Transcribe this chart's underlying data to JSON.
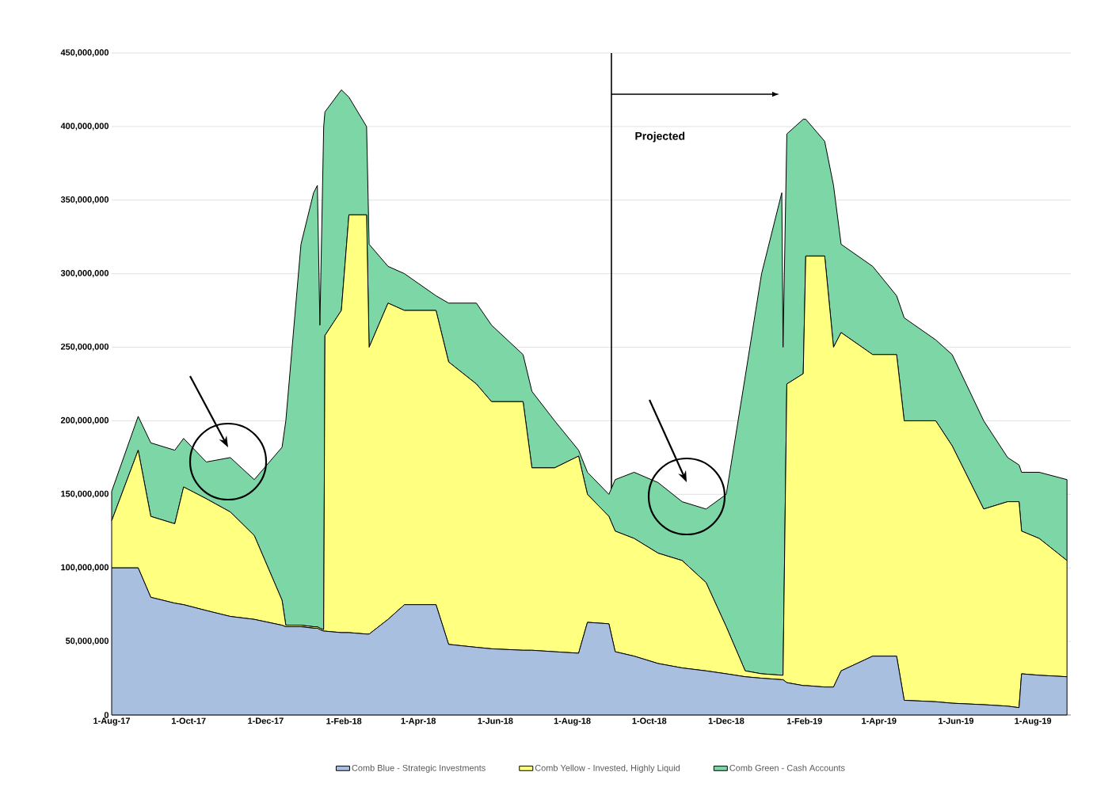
{
  "chart_data": {
    "type": "area",
    "stacked": true,
    "x": [
      "2017-08-01",
      "2017-08-22",
      "2017-09-01",
      "2017-09-20",
      "2017-09-27",
      "2017-10-15",
      "2017-11-03",
      "2017-11-22",
      "2017-12-14",
      "2017-12-17",
      "2017-12-29",
      "2018-01-08",
      "2018-01-11",
      "2018-01-13",
      "2018-01-16",
      "2018-01-17",
      "2018-01-30",
      "2018-02-05",
      "2018-02-19",
      "2018-02-21",
      "2018-03-08",
      "2018-03-21",
      "2018-04-15",
      "2018-04-25",
      "2018-05-17",
      "2018-05-29",
      "2018-06-23",
      "2018-06-30",
      "2018-07-18",
      "2018-08-06",
      "2018-08-13",
      "2018-08-30",
      "2018-09-04",
      "2018-09-19",
      "2018-10-08",
      "2018-10-27",
      "2018-11-15",
      "2018-12-01",
      "2018-12-16",
      "2018-12-29",
      "2019-01-14",
      "2019-01-15",
      "2019-01-18",
      "2019-01-31",
      "2019-02-02",
      "2019-02-17",
      "2019-02-24",
      "2019-03-02",
      "2019-03-27",
      "2019-04-15",
      "2019-04-21",
      "2019-05-16",
      "2019-05-29",
      "2019-06-23",
      "2019-07-12",
      "2019-07-21",
      "2019-07-23",
      "2019-08-06",
      "2019-08-28"
    ],
    "series": [
      {
        "name": "Comb Blue - Strategic Investments",
        "color": "#a9bfdf",
        "values": [
          100000000.0,
          100000000.0,
          80000000.0,
          76000000.0,
          75000000.0,
          71000000.0,
          67000000.0,
          65000000.0,
          61000000.0,
          60000000.0,
          60000000.0,
          59000000.0,
          59000000.0,
          58000000.0,
          57000000.0,
          57000000.0,
          56000000.0,
          56000000.0,
          55000000.0,
          55000000.0,
          65000000.0,
          75000000.0,
          75000000.0,
          48000000.0,
          46000000.0,
          45000000.0,
          44000000.0,
          44000000.0,
          43000000.0,
          42000000.0,
          63000000.0,
          62000000.0,
          43000000.0,
          40000000.0,
          35000000.0,
          32000000.0,
          30000000.0,
          28000000.0,
          26000000.0,
          25000000.0,
          24000000.0,
          24000000.0,
          22000000.0,
          20000000.0,
          20000000.0,
          19000000.0,
          19000000.0,
          30000000.0,
          40000000.0,
          40000000.0,
          10000000.0,
          9000000.0,
          8000000.0,
          7000000.0,
          6000000.0,
          5000000.0,
          28000000.0,
          27000000.0,
          26000000.0
        ]
      },
      {
        "name": "Comb Yellow - Invested, Highly Liquid",
        "color": "#ffff80",
        "values": [
          32000000.0,
          80000000.0,
          55000000.0,
          54000000.0,
          80000000.0,
          76000000.0,
          71000000.0,
          57000000.0,
          17000000.0,
          1000000.0,
          1000000.0,
          1000000.0,
          1000000.0,
          1000000.0,
          1000000.0,
          201000000.0,
          219000000.0,
          284000000.0,
          285000000.0,
          195000000.0,
          215000000.0,
          200000000.0,
          200000000.0,
          192000000.0,
          179000000.0,
          168000000.0,
          169000000.0,
          124000000.0,
          125000000.0,
          134000000.0,
          87000000.0,
          73000000.0,
          82000000.0,
          80000000.0,
          75000000.0,
          73000000.0,
          60000000.0,
          32000000.0,
          4000000.0,
          3000000.0,
          3000000.0,
          3000000.0,
          203000000.0,
          212000000.0,
          292000000.0,
          293000000.0,
          231000000.0,
          230000000.0,
          205000000.0,
          205000000.0,
          190000000.0,
          191000000.0,
          175000000.0,
          133000000.0,
          139000000.0,
          140000000.0,
          97000000.0,
          93000000.0,
          79000000.0
        ]
      },
      {
        "name": "Comb Green - Cash Accounts",
        "color": "#7dd6a5",
        "values": [
          20000000.0,
          23000000.0,
          50000000.0,
          50000000.0,
          33000000.0,
          25000000.0,
          37000000.0,
          38000000.0,
          104000000.0,
          139000000.0,
          259000000.0,
          295000000.0,
          300000000.0,
          206000000.0,
          342000000.0,
          152000000.0,
          150000000.0,
          80000000.0,
          60000000.0,
          70000000.0,
          25000000.0,
          25000000.0,
          10000000.0,
          40000000.0,
          55000000.0,
          52000000.0,
          32000000.0,
          52000000.0,
          32000000.0,
          4000000.0,
          15000000.0,
          15000000.0,
          35000000.0,
          45000000.0,
          48000000.0,
          40000000.0,
          50000000.0,
          90000000.0,
          200000000.0,
          272000000.0,
          328000000.0,
          223000000.0,
          170000000.0,
          173000000.0,
          93000000.0,
          78000000.0,
          110000000.0,
          60000000.0,
          60000000.0,
          40000000.0,
          70000000.0,
          55000000.0,
          62000000.0,
          60000000.0,
          30000000.0,
          25000000.0,
          40000000.0,
          45000000.0,
          55000000.0
        ]
      }
    ],
    "xlim": [
      "2017-08-01",
      "2019-08-31"
    ],
    "xticks": [
      {
        "value": "2017-08-01",
        "label": "1-Aug-17"
      },
      {
        "value": "2017-10-01",
        "label": "1-Oct-17"
      },
      {
        "value": "2017-12-01",
        "label": "1-Dec-17"
      },
      {
        "value": "2018-02-01",
        "label": "1-Feb-18"
      },
      {
        "value": "2018-04-01",
        "label": "1-Apr-18"
      },
      {
        "value": "2018-06-01",
        "label": "1-Jun-18"
      },
      {
        "value": "2018-08-01",
        "label": "1-Aug-18"
      },
      {
        "value": "2018-10-01",
        "label": "1-Oct-18"
      },
      {
        "value": "2018-12-01",
        "label": "1-Dec-18"
      },
      {
        "value": "2019-02-01",
        "label": "1-Feb-19"
      },
      {
        "value": "2019-04-01",
        "label": "1-Apr-19"
      },
      {
        "value": "2019-06-01",
        "label": "1-Jun-19"
      },
      {
        "value": "2019-08-01",
        "label": "1-Aug-19"
      }
    ],
    "ylim": [
      0,
      450000000
    ],
    "yticks": [
      0,
      {
        "value": 50000000,
        "label": "50,000,000"
      },
      {
        "value": 100000000,
        "label": "100,000,000"
      },
      {
        "value": 150000000,
        "label": "150,000,000"
      },
      {
        "value": 200000000,
        "label": "200,000,000"
      },
      {
        "value": 250000000,
        "label": "250,000,000"
      },
      {
        "value": 300000000,
        "label": "300,000,000"
      },
      {
        "value": 350000000,
        "label": "350,000,000"
      },
      {
        "value": 400000000,
        "label": "400,000,000"
      },
      {
        "value": 450000000,
        "label": "450,000,000"
      }
    ],
    "ref_lines": [
      {
        "axis": "x",
        "value": "2018-09-01",
        "label": "Projected",
        "color": "#000000"
      }
    ],
    "grid": "y",
    "legend": "bottom",
    "marker": "none",
    "line_style": "solid"
  }
}
